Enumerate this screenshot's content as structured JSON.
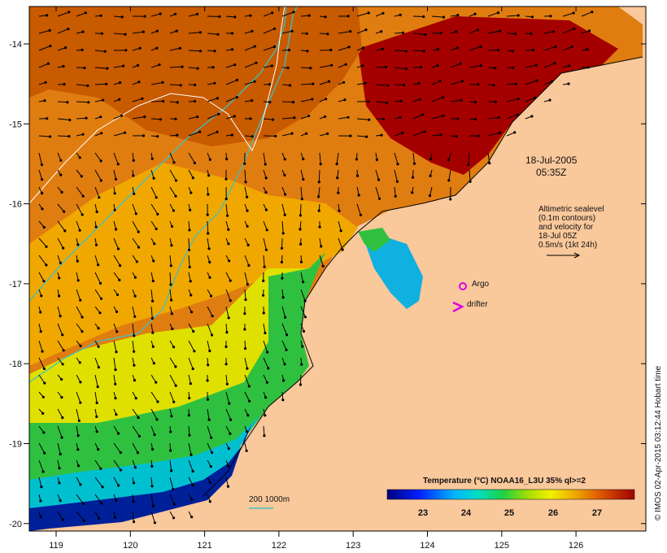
{
  "map": {
    "lon_ticks": [
      "119",
      "120",
      "121",
      "122",
      "123",
      "124",
      "125",
      "126"
    ],
    "lat_ticks": [
      "-14",
      "-15",
      "-16",
      "-17",
      "-18",
      "-19",
      "-20"
    ],
    "colors": {
      "land": "#f9c89b",
      "sst_hot": "#a50000",
      "sst_warm": "#e07000",
      "sst_mid": "#f0b000",
      "sst_yellow": "#e6e600",
      "sst_green": "#20c050",
      "sst_cyan": "#00c8d8",
      "sst_blue": "#0020a0",
      "isobath_200": "#40c0c0",
      "isobath_1000": "#ffffff",
      "argo": "#e000e0",
      "drifter": "#e000e0"
    }
  },
  "annotations": {
    "timestamp_date": "18-Jul-2005",
    "timestamp_time": "05:35Z",
    "alt_legend_lines": [
      "Altimetric sealevel",
      "(0.1m contours)",
      "and velocity for",
      "18-Jul 05Z",
      "0.5m/s (1kt 24h)"
    ],
    "argo_label": "Argo",
    "drifter_label": "drifter",
    "scale_label": "200  1000m",
    "colorbar_title": "Temperature (°C) NOAA16_L3U 35% ql>=2",
    "colorbar_ticks": [
      "23",
      "24",
      "25",
      "26",
      "27"
    ],
    "credit": "© IMOS 02-Apr-2015 03:12:44 Hobart time"
  }
}
